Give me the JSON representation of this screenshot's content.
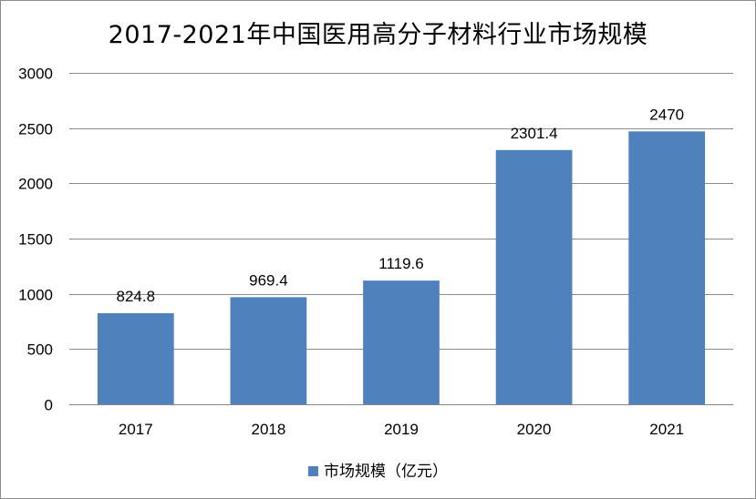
{
  "chart_data": {
    "type": "bar",
    "title": "2017-2021年中国医用高分子材料行业市场规模",
    "categories": [
      "2017",
      "2018",
      "2019",
      "2020",
      "2021"
    ],
    "series": [
      {
        "name": "市场规模（亿元）",
        "values": [
          824.8,
          969.4,
          1119.6,
          2301.4,
          2470
        ]
      }
    ],
    "data_labels": [
      "824.8",
      "969.4",
      "1119.6",
      "2301.4",
      "2470"
    ],
    "y_ticks": [
      "0",
      "500",
      "1000",
      "1500",
      "2000",
      "2500",
      "3000"
    ],
    "ylim": [
      0,
      3000
    ],
    "grid": true,
    "legend_position": "bottom",
    "bar_color": "#4f81bd"
  }
}
